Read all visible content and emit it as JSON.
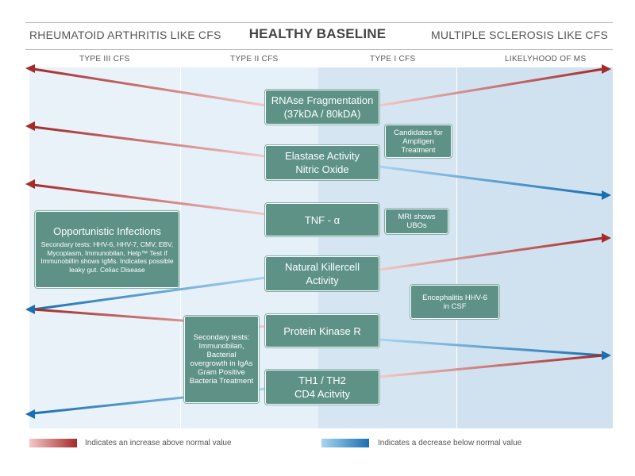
{
  "header": {
    "left": "RHEUMATOID ARTHRITIS LIKE CFS",
    "center": "HEALTHY BASELINE",
    "right": "MULTIPLE SCLEROSIS LIKE CFS"
  },
  "columns": [
    "TYPE III CFS",
    "TYPE II CFS",
    "TYPE I CFS",
    "LIKELYHOOD OF MS"
  ],
  "markers": [
    {
      "line1": "RNAse Fragmentation",
      "line2": "(37kDA / 80kDA)"
    },
    {
      "line1": "Elastase Activity",
      "line2": "Nitric Oxide"
    },
    {
      "line1": "TNF - α",
      "line2": ""
    },
    {
      "line1": "Natural Killercell",
      "line2": "Activity"
    },
    {
      "line1": "Protein Kinase R",
      "line2": ""
    },
    {
      "line1": "TH1 / TH2",
      "line2": "CD4 Acitvity"
    }
  ],
  "notes": {
    "ampligen": "Candidates for Ampligen Treatment",
    "mri": "MRI shows UBOs",
    "encephalitis": "Encephalitis HHV-6 in CSF",
    "secondary2": "Secondary tests: Immunobilan, Bacterial overgrowth in IgAs Gram Positive Bacteria Treatment",
    "opportunistic_title": "Opportunistic Infections",
    "opportunistic_body": "Secondary tests: HHV-6, HHV-7, CMV, EBV, Mycoplasm, Immunobilan, Help™ Test if Immunobillin shows IgMs. Indicates possible leaky gut. Celiac Disease"
  },
  "legend": {
    "increase": "Indicates an increase above normal value",
    "decrease": "Indicates a decrease below normal value"
  },
  "colors": {
    "increase_dark": "#a52a2a",
    "increase_light": "#f2c8c8",
    "decrease_dark": "#1a6fb0",
    "decrease_light": "#a8d4f0",
    "box": "#5e9287"
  }
}
